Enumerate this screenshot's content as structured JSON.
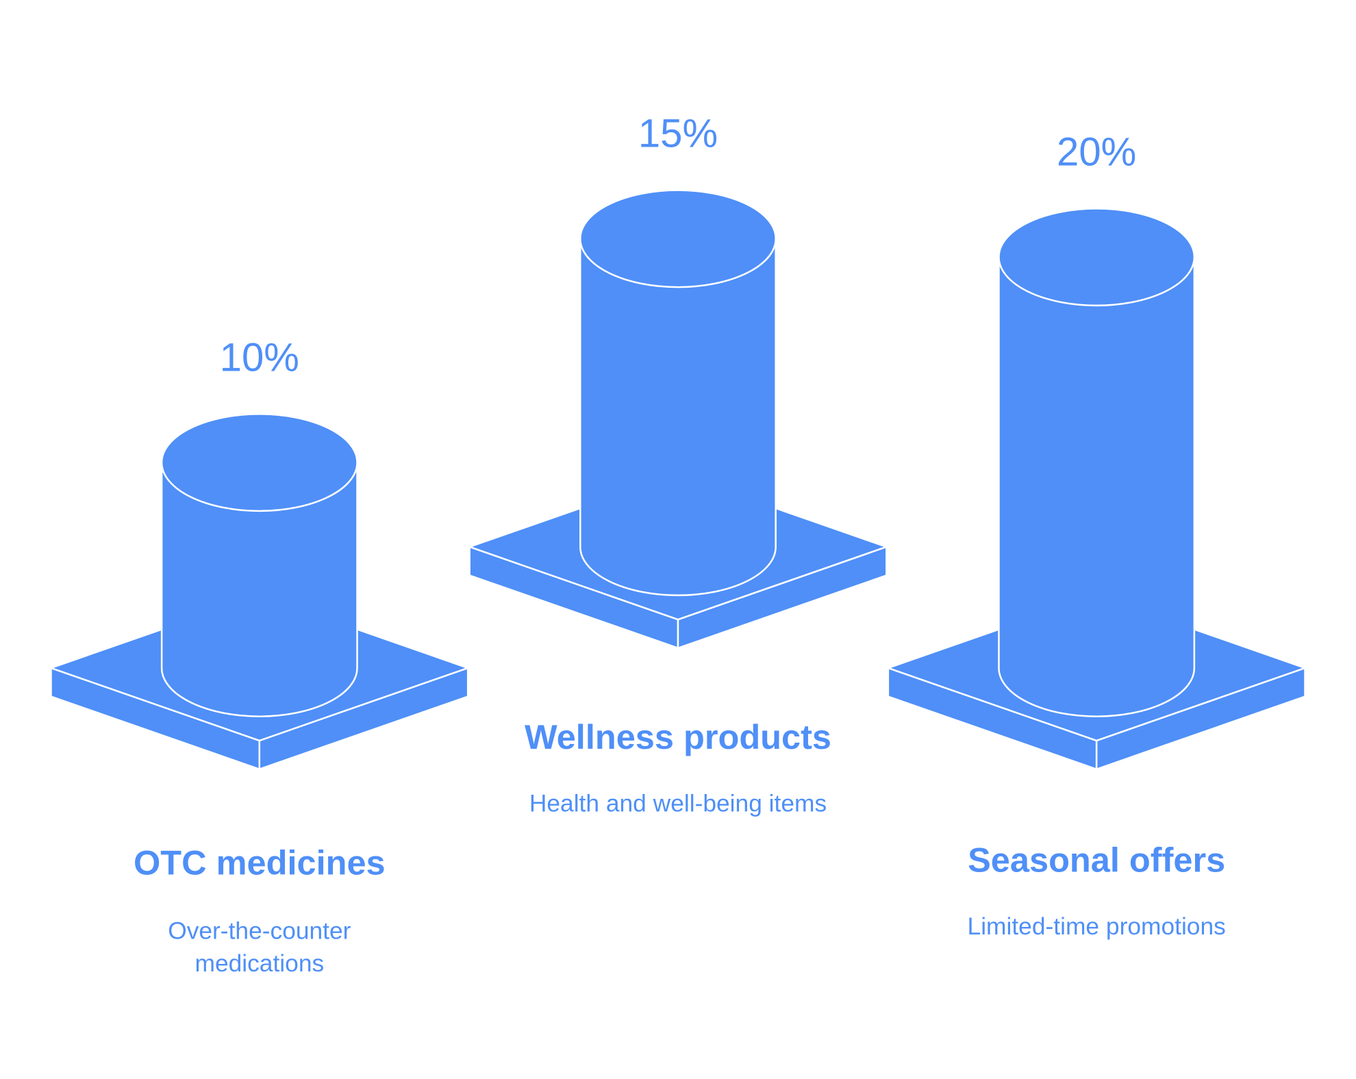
{
  "chart_data": {
    "type": "bar",
    "categories": [
      "OTC medicines",
      "Wellness products",
      "Seasonal offers"
    ],
    "descriptions": [
      "Over-the-counter medications",
      "Health and well-being items",
      "Limited-time promotions"
    ],
    "values": [
      10,
      15,
      20
    ],
    "value_labels": [
      "10%",
      "15%",
      "20%"
    ],
    "color": "#4f8ff7"
  }
}
